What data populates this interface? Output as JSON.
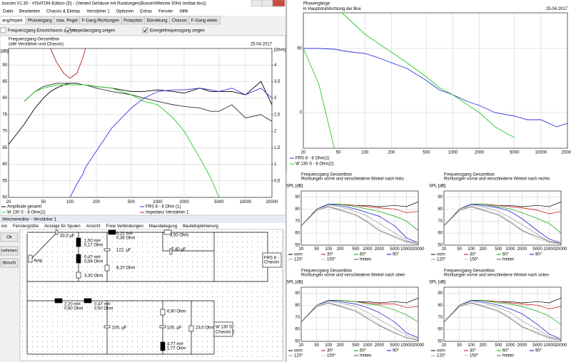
{
  "window": {
    "title": "boxsim V1.30 - VISATON-Edition (D) - (Vented Gehäuse mit Rundungen(Boxsim/Weiche 30Hz testbar.bxs))",
    "menu": [
      "Datei",
      "Bearbeiten",
      "Chassis & Einbau",
      "Verstärker 1",
      "Optionen",
      "Extras",
      "Fenster",
      "Hilfe"
    ],
    "tabs": [
      "ang/Imped.",
      "Phasengang",
      "max. Pegel",
      "F-Gang Richtungen",
      "Polarplots",
      "Bündelung",
      "Chassis",
      "F-Gang elektr."
    ],
    "checkboxes": [
      {
        "label": "Frequenzgang Einzelchassis zeigen",
        "checked": false
      },
      {
        "label": "Impedanzgang zeigen",
        "checked": true
      },
      {
        "label": "Energiefrequenzgang zeigen",
        "checked": true
      }
    ]
  },
  "chart_data": [
    {
      "type": "line",
      "title": "Frequenzgang Gesamtbox",
      "subtitle": "(alle Verstärker und Chassis)",
      "date": "25.04.2017",
      "ylabel": "[dB]",
      "y2label": "[Ohm]",
      "xscale": "log",
      "grid": true,
      "x": [
        20,
        30,
        40,
        50,
        60,
        70,
        85,
        100,
        120,
        140,
        150,
        200,
        300,
        500,
        700,
        1000,
        1500,
        2000,
        3000,
        4000,
        5000,
        7000,
        10000,
        15000,
        20000
      ],
      "xlim": [
        20,
        20000
      ],
      "xticks": [
        20,
        50,
        100,
        200,
        500,
        1000,
        2000,
        5000,
        10000,
        20000
      ],
      "ylim": [
        50,
        95
      ],
      "yticks": [
        50,
        55,
        60,
        65,
        70,
        75,
        80,
        85,
        90
      ],
      "y2lim": [
        0,
        4.5
      ],
      "y2ticks": [
        {
          "value": 0.5,
          "label": "0,5"
        },
        1,
        {
          "value": 1.5,
          "label": "1,5"
        },
        2,
        {
          "value": 2.5,
          "label": "2,5"
        },
        3,
        {
          "value": 3.5,
          "label": "3,5"
        },
        4
      ],
      "series": [
        {
          "name": "Amplitude gesamt",
          "color": "#000000",
          "values": [
            66,
            72,
            77,
            80,
            82,
            83,
            84,
            84.5,
            84.5,
            84,
            84,
            83.5,
            83,
            82,
            82,
            82.5,
            82,
            81.5,
            83,
            82,
            82,
            82,
            81,
            85,
            78
          ]
        },
        {
          "color": "#333333",
          "values": [
            null,
            79,
            82,
            83.5,
            84,
            84.5,
            84.5,
            84.5,
            84.5,
            84,
            84,
            83,
            82,
            81,
            80,
            79,
            78,
            77.5,
            77,
            76,
            76,
            78,
            74,
            75,
            73
          ]
        },
        {
          "name": "W 130 S - 8 Ohm(2)",
          "color": "#22cc22",
          "values": [
            null,
            79,
            82,
            83,
            83.5,
            84,
            84,
            84,
            84,
            84,
            84,
            83.5,
            83,
            81,
            79,
            78,
            74,
            70,
            62,
            56,
            50,
            null,
            null,
            null,
            null
          ]
        },
        {
          "name": "FRS 8 - 8 Ohm (1)",
          "color": "#3333dd",
          "values": [
            null,
            null,
            null,
            null,
            null,
            null,
            null,
            50,
            54,
            57,
            59,
            64,
            71,
            77,
            80,
            82,
            82.5,
            82.5,
            83,
            82.5,
            82,
            83,
            81,
            83,
            80
          ]
        },
        {
          "name": "Impedanz Verstärker 1",
          "color": "#b02020",
          "axis": "y2",
          "values": [
            null,
            null,
            null,
            null,
            4.5,
            4.1,
            3.75,
            3.6,
            3.75,
            4.2,
            4.5,
            null,
            null,
            null,
            null,
            null,
            null,
            null,
            null,
            null,
            null,
            null,
            null,
            null,
            null
          ]
        }
      ]
    },
    {
      "type": "line",
      "title": "Phasengänge",
      "subtitle": "in Hauptstrahlrichtung der Box",
      "date": "25.04.2017",
      "xscale": "log",
      "grid": true,
      "x": [
        20,
        30,
        45,
        50,
        55,
        70,
        100,
        150,
        200,
        300,
        500,
        700,
        1000,
        1500,
        2000,
        3000,
        5000,
        7000,
        10000,
        15000,
        20000
      ],
      "xlim": [
        20,
        20000
      ],
      "xticks": [
        20,
        50,
        100,
        200,
        500,
        1000,
        2000,
        5000,
        10000,
        20000
      ],
      "ylim": [
        -50,
        140
      ],
      "yticks": [
        0,
        90
      ],
      "series": [
        {
          "name": "FRS 8 - 8 Ohm(1)",
          "color": "#3333dd",
          "values": [
            90,
            90,
            89,
            88,
            87,
            85,
            83,
            76,
            70,
            62,
            45,
            32,
            25,
            15,
            10,
            0,
            -5,
            -10,
            -10,
            -20,
            -15
          ]
        },
        {
          "name": "W 130 S - 8 Ohm(2)",
          "color": "#22cc22",
          "values": [
            90,
            40,
            -50,
            null,
            140,
            128,
            110,
            95,
            85,
            70,
            50,
            35,
            25,
            10,
            0,
            -20,
            -35,
            null,
            null,
            null,
            null
          ]
        }
      ]
    },
    {
      "type": "line",
      "title": "Frequenzgang Gesamtbox",
      "subtitle": "Richtungen vorne und verschiedene Winkel nach links",
      "ylabel": "SPL [dB]",
      "xscale": "log",
      "grid": true,
      "x": [
        20,
        50,
        100,
        200,
        500,
        1000,
        2000,
        5000,
        10000,
        20000
      ],
      "xlim": [
        20,
        20000
      ],
      "xticks": [
        20,
        50,
        100,
        200,
        500,
        1000,
        2000,
        5000,
        10000,
        20000
      ],
      "ylim": [
        50,
        95
      ],
      "yticks": [
        50,
        60,
        70,
        80,
        90
      ],
      "series": [
        {
          "name": "vorn",
          "color": "#000000",
          "values": [
            66,
            80,
            84,
            84,
            83,
            83,
            82,
            83,
            82,
            86
          ]
        },
        {
          "name": "30°",
          "color": "#d00000",
          "values": [
            66,
            80,
            84,
            84,
            83,
            82,
            81,
            80,
            77,
            78
          ]
        },
        {
          "name": "60°",
          "color": "#00a000",
          "values": [
            66,
            80,
            84,
            84,
            82,
            80,
            78,
            74,
            70,
            62
          ]
        },
        {
          "name": "90°",
          "color": "#0000d0",
          "values": [
            66,
            80,
            84,
            83,
            80,
            77,
            74,
            66,
            56,
            52
          ]
        },
        {
          "name": "120°",
          "color": "#9a9a9a",
          "values": [
            66,
            80,
            83,
            82,
            78,
            74,
            68,
            60,
            54,
            52
          ]
        },
        {
          "name": "150°",
          "color": "#c8c8c8",
          "values": [
            66,
            79,
            82,
            80,
            76,
            70,
            64,
            56,
            52,
            51
          ]
        },
        {
          "name": "hinten",
          "color": "#555555",
          "values": [
            66,
            79,
            82,
            79,
            75,
            69,
            62,
            57,
            53,
            51
          ]
        }
      ]
    },
    {
      "type": "line",
      "title": "Frequenzgang Gesamtbox",
      "subtitle": "Richtungen vorne und verschiedene Winkel nach rechts",
      "ylabel": "SPL [dB]",
      "xscale": "log",
      "grid": true,
      "x": [
        20,
        50,
        100,
        200,
        500,
        1000,
        2000,
        5000,
        10000,
        20000
      ],
      "xlim": [
        20,
        20000
      ],
      "xticks": [
        20,
        50,
        100,
        200,
        500,
        1000,
        2000,
        5000,
        10000,
        20000
      ],
      "ylim": [
        50,
        95
      ],
      "yticks": [
        50,
        60,
        70,
        80,
        90
      ],
      "series": [
        {
          "name": "vorn",
          "color": "#000000",
          "values": [
            66,
            80,
            84,
            84,
            83,
            83,
            82,
            83,
            82,
            86
          ]
        },
        {
          "name": "30°",
          "color": "#d00000",
          "values": [
            66,
            80,
            84,
            84,
            83,
            82,
            81,
            79,
            76,
            78
          ]
        },
        {
          "name": "60°",
          "color": "#00a000",
          "values": [
            66,
            80,
            84,
            84,
            82,
            80,
            77,
            72,
            68,
            60
          ]
        },
        {
          "name": "90°",
          "color": "#0000d0",
          "values": [
            66,
            80,
            84,
            83,
            81,
            78,
            72,
            62,
            55,
            52
          ]
        },
        {
          "name": "120°",
          "color": "#9a9a9a",
          "values": [
            66,
            80,
            83,
            82,
            78,
            73,
            67,
            59,
            53,
            52
          ]
        },
        {
          "name": "150°",
          "color": "#c8c8c8",
          "values": [
            66,
            79,
            82,
            80,
            76,
            70,
            63,
            55,
            52,
            51
          ]
        },
        {
          "name": "hinten",
          "color": "#555555",
          "values": [
            66,
            79,
            82,
            79,
            75,
            69,
            62,
            57,
            53,
            51
          ]
        }
      ]
    },
    {
      "type": "line",
      "title": "Frequenzgang Gesamtbox",
      "subtitle": "Richtungen vorne und verschiedene Winkel nach oben",
      "ylabel": "SPL [dB]",
      "xscale": "log",
      "grid": true,
      "x": [
        20,
        50,
        100,
        200,
        500,
        1000,
        2000,
        5000,
        10000,
        20000
      ],
      "xlim": [
        20,
        20000
      ],
      "xticks": [
        20,
        50,
        100,
        200,
        500,
        1000,
        2000,
        5000,
        10000,
        20000
      ],
      "ylim": [
        50,
        95
      ],
      "yticks": [
        50,
        60,
        70,
        80,
        90
      ],
      "series": [
        {
          "name": "vorn",
          "color": "#000000",
          "values": [
            66,
            80,
            84,
            84,
            83,
            83,
            82,
            83,
            82,
            86
          ]
        },
        {
          "name": "30°",
          "color": "#d00000",
          "values": [
            66,
            80,
            84,
            84,
            83,
            82,
            81,
            81,
            78,
            79
          ]
        },
        {
          "name": "60°",
          "color": "#00a000",
          "values": [
            66,
            80,
            84,
            84,
            83,
            81,
            80,
            76,
            72,
            66
          ]
        },
        {
          "name": "90°",
          "color": "#0000d0",
          "values": [
            66,
            80,
            84,
            83,
            81,
            78,
            74,
            66,
            57,
            53
          ]
        },
        {
          "name": "120°",
          "color": "#9a9a9a",
          "values": [
            66,
            80,
            83,
            82,
            79,
            74,
            68,
            61,
            55,
            52
          ]
        },
        {
          "name": "150°",
          "color": "#c8c8c8",
          "values": [
            66,
            79,
            82,
            80,
            76,
            71,
            64,
            57,
            53,
            51
          ]
        },
        {
          "name": "hinten",
          "color": "#555555",
          "values": [
            66,
            79,
            82,
            79,
            75,
            69,
            63,
            57,
            53,
            51
          ]
        }
      ]
    },
    {
      "type": "line",
      "title": "Frequenzgang Gesamtbox",
      "subtitle": "Richtungen vorne und verschiedene Winkel nach unten",
      "ylabel": "SPL [dB]",
      "xscale": "log",
      "grid": true,
      "x": [
        20,
        50,
        100,
        200,
        500,
        1000,
        2000,
        5000,
        10000,
        20000
      ],
      "xlim": [
        20,
        20000
      ],
      "xticks": [
        20,
        50,
        100,
        200,
        500,
        1000,
        2000,
        5000,
        10000,
        20000
      ],
      "ylim": [
        50,
        95
      ],
      "yticks": [
        50,
        60,
        70,
        80,
        90
      ],
      "series": [
        {
          "name": "vorn",
          "color": "#000000",
          "values": [
            66,
            80,
            84,
            84,
            83,
            83,
            82,
            83,
            82,
            86
          ]
        },
        {
          "name": "30°",
          "color": "#d00000",
          "values": [
            66,
            80,
            84,
            84,
            83,
            82,
            81,
            80,
            77,
            79
          ]
        },
        {
          "name": "60°",
          "color": "#00a000",
          "values": [
            66,
            80,
            84,
            84,
            82,
            81,
            79,
            75,
            71,
            64
          ]
        },
        {
          "name": "90°",
          "color": "#0000d0",
          "values": [
            66,
            80,
            84,
            83,
            80,
            77,
            73,
            64,
            56,
            52
          ]
        },
        {
          "name": "120°",
          "color": "#9a9a9a",
          "values": [
            66,
            80,
            83,
            82,
            78,
            74,
            67,
            60,
            54,
            52
          ]
        },
        {
          "name": "150°",
          "color": "#c8c8c8",
          "values": [
            66,
            79,
            82,
            80,
            76,
            70,
            63,
            56,
            52,
            51
          ]
        },
        {
          "name": "hinten",
          "color": "#555555",
          "values": [
            66,
            79,
            82,
            79,
            75,
            69,
            62,
            57,
            53,
            51
          ]
        }
      ]
    }
  ],
  "editor": {
    "title": "Weicheneditor - Verstärker 1",
    "menu": [
      "ion",
      "Fenstergröße",
      "Anzeige für Spulen",
      "Ansicht",
      "Freie Verbindungen",
      "Mausbelegung",
      "Bauteiloptimierung"
    ],
    "buttons": [
      "Ok",
      "nehmen",
      "bbruch"
    ],
    "labels": [
      "33,0 µF",
      "1,50 mH",
      "0,17 Ohm",
      "0,47 mH",
      "0,58 Ohm",
      "3,30 Ohm",
      "0,22 mH",
      "0,38 Ohm",
      "3,50 Ohm",
      "122, µF",
      "7,40 µF",
      "8,20 Ohm",
      "FRS 8 -",
      "Chassis",
      "Amp",
      "2,20 mH",
      "0,80 Ohm",
      "0,47 mH",
      "0,50 Ohm",
      "6,90 Ohm",
      "100, µF",
      "100, µF",
      "23,0 Ohm",
      "4,77 mH",
      "1,77 Ohm",
      "W 130 S -",
      "Chassis 2"
    ]
  }
}
